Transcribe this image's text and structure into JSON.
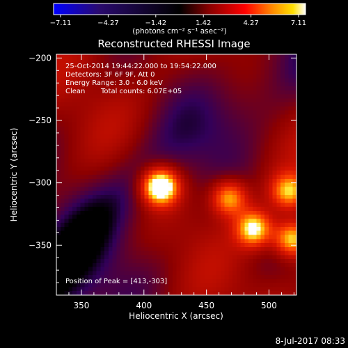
{
  "chart_data": {
    "type": "heatmap",
    "title": "Reconstructed RHESSI Image",
    "xlabel": "Heliocentric X (arcsec)",
    "ylabel": "Heliocentric Y (arcsec)",
    "xlim": [
      330,
      522
    ],
    "ylim": [
      -390,
      -197
    ],
    "x_ticks": [
      350,
      400,
      450,
      500
    ],
    "y_ticks": [
      -200,
      -250,
      -300,
      -350
    ],
    "colorbar": {
      "tick_labels": [
        "−7.11",
        "−4.27",
        "−1.42",
        "1.42",
        "4.27",
        "7.11"
      ],
      "unit_label": "(photons cm⁻² s⁻¹ asec⁻²)",
      "colors": [
        "#0000ff",
        "#2a0a6e",
        "#000000",
        "#8b0000",
        "#ff0000",
        "#ff8c00",
        "#ffe000",
        "#ffffff"
      ]
    },
    "annotations": [
      "25-Oct-2014 19:44:22.000 to 19:54:22.000",
      "Detectors: 3F 6F 9F, Att 0",
      "Energy Range: 3.0 - 6.0 keV",
      "Clean",
      "Total counts: 6.07E+05"
    ],
    "peak_label": "Position of Peak = [413,-303]",
    "peak": [
      413,
      -303
    ],
    "sources": [
      {
        "x": 413,
        "y": -303,
        "amp": 7.1
      },
      {
        "x": 468,
        "y": -312,
        "amp": 4.4
      },
      {
        "x": 488,
        "y": -337,
        "amp": 5.2
      },
      {
        "x": 518,
        "y": -345,
        "amp": 5.0
      },
      {
        "x": 516,
        "y": -307,
        "amp": 4.2
      }
    ],
    "footer_date": "8-Jul-2017 08:33"
  }
}
